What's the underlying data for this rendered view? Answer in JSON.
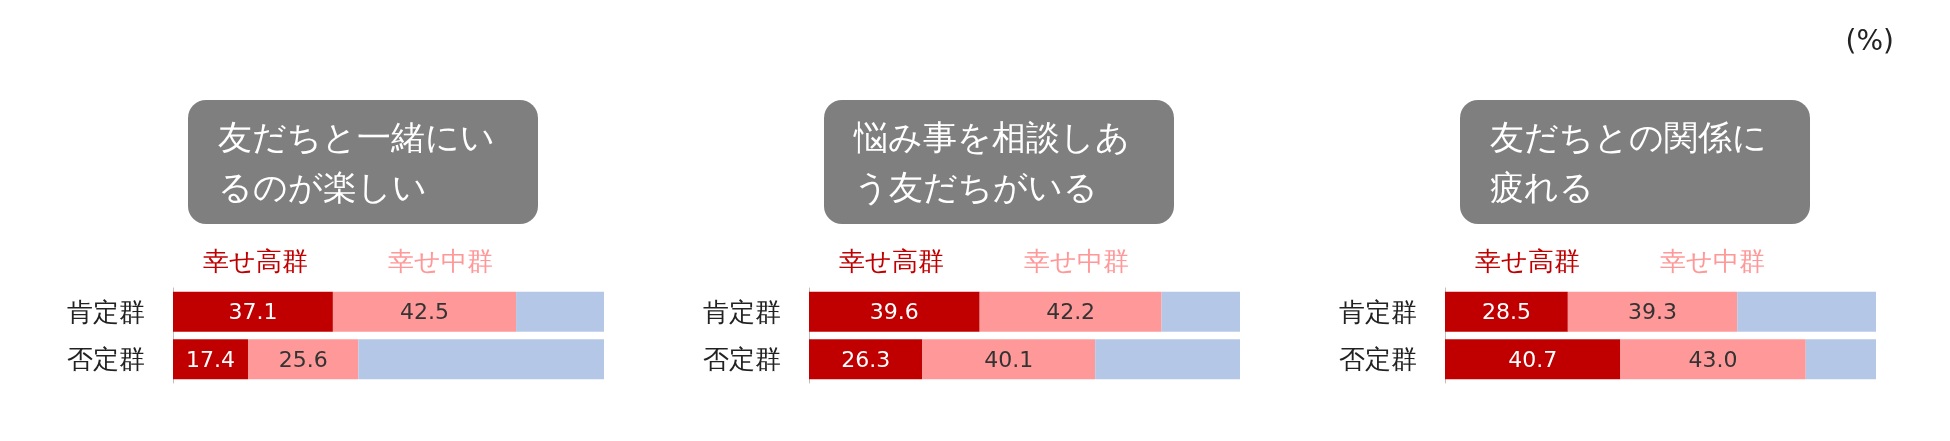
{
  "chart_data": [
    {
      "type": "bar",
      "orientation": "horizontal",
      "stacked": true,
      "title": "友だちと一緒にいるのが楽しい",
      "categories": [
        "肯定群",
        "否定群"
      ],
      "xlim": [
        0,
        100
      ],
      "tick_labels": "y",
      "legend": "top",
      "series": [
        {
          "name": "幸せ高群",
          "color": "#c00000",
          "values": [
            37.1,
            17.4
          ],
          "value_labels": [
            "37.1",
            "17.4"
          ]
        },
        {
          "name": "幸せ中群",
          "color": "#ff9999",
          "values": [
            42.5,
            25.6
          ],
          "value_labels": [
            "42.5",
            "25.6"
          ]
        },
        {
          "color": "#b4c7e7",
          "values": [
            20.4,
            57.0
          ],
          "value_labels": [
            null,
            null
          ]
        }
      ]
    },
    {
      "type": "bar",
      "orientation": "horizontal",
      "stacked": true,
      "title": "悩み事を相談しあう友だちがいる",
      "categories": [
        "肯定群",
        "否定群"
      ],
      "xlim": [
        0,
        100
      ],
      "tick_labels": "y",
      "legend": "top",
      "series": [
        {
          "name": "幸せ高群",
          "color": "#c00000",
          "values": [
            39.6,
            26.3
          ],
          "value_labels": [
            "39.6",
            "26.3"
          ]
        },
        {
          "name": "幸せ中群",
          "color": "#ff9999",
          "values": [
            42.2,
            40.1
          ],
          "value_labels": [
            "42.2",
            "40.1"
          ]
        },
        {
          "color": "#b4c7e7",
          "values": [
            18.2,
            33.6
          ],
          "value_labels": [
            null,
            null
          ]
        }
      ]
    },
    {
      "type": "bar",
      "orientation": "horizontal",
      "stacked": true,
      "title": "友だちとの関係に疲れる",
      "categories": [
        "肯定群",
        "否定群"
      ],
      "xlim": [
        0,
        100
      ],
      "tick_labels": "y",
      "legend": "top",
      "annotations": [
        "(%)"
      ],
      "series": [
        {
          "name": "幸せ高群",
          "color": "#c00000",
          "values": [
            28.5,
            40.7
          ],
          "value_labels": [
            "28.5",
            "40.7"
          ]
        },
        {
          "name": "幸せ中群",
          "color": "#ff9999",
          "values": [
            39.3,
            43.0
          ],
          "value_labels": [
            "39.3",
            "43.0"
          ]
        },
        {
          "color": "#b4c7e7",
          "values": [
            32.2,
            16.3
          ],
          "value_labels": [
            null,
            null
          ]
        }
      ]
    }
  ]
}
